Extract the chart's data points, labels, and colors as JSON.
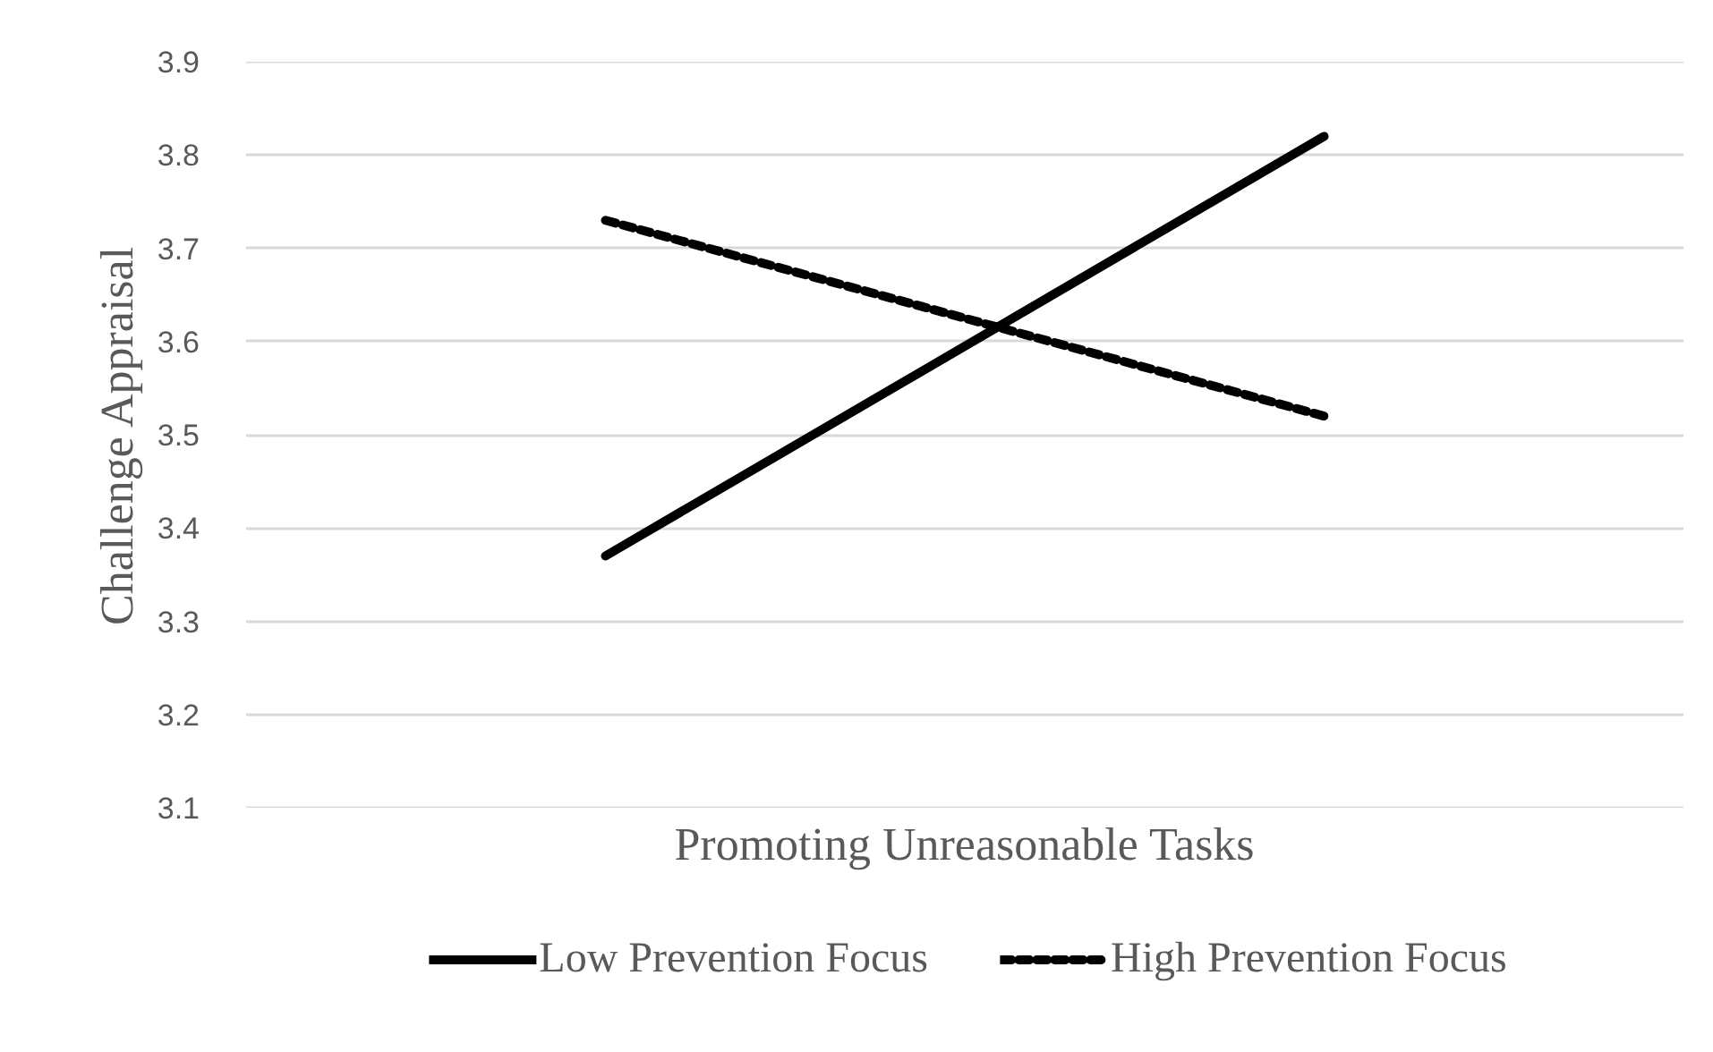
{
  "chart_data": {
    "type": "line",
    "xlabel": "Promoting Unreasonable Tasks",
    "ylabel": "Challenge Appraisal",
    "categories": [
      null,
      null
    ],
    "series": [
      {
        "name": "Low Prevention Focus",
        "color": "#000000",
        "line_style": "solid",
        "values": [
          3.37,
          3.82
        ]
      },
      {
        "name": "High Prevention Focus",
        "color": "#000000",
        "line_style": "dashed",
        "values": [
          3.73,
          3.52
        ]
      }
    ],
    "ylim": [
      3.1,
      3.9
    ],
    "yticks": [
      3.1,
      3.2,
      3.3,
      3.4,
      3.5,
      3.6,
      3.7,
      3.8,
      3.9
    ],
    "grid": "y",
    "legend": "bottom",
    "marker": "none"
  }
}
